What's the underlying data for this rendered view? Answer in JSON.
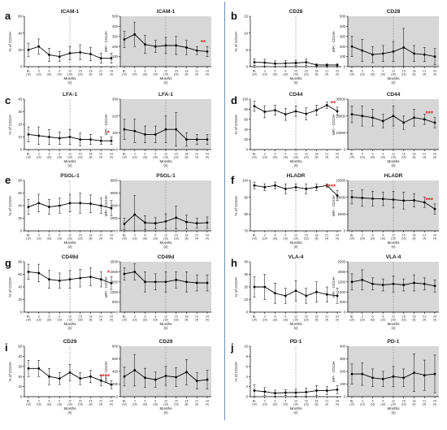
{
  "panels": [
    {
      "letter": "a"
    },
    {
      "letter": "b"
    },
    {
      "letter": "c"
    },
    {
      "letter": "d"
    },
    {
      "letter": "e"
    },
    {
      "letter": "f"
    },
    {
      "letter": "g"
    },
    {
      "letter": "h"
    },
    {
      "letter": "i"
    },
    {
      "letter": "j"
    }
  ],
  "colors": {
    "shade": "#d7d7d7",
    "line": "#000000",
    "star": "#e0262a",
    "dashed": "#888888"
  },
  "common": {
    "xticks": [
      "BL",
      "3",
      "6",
      "9",
      "12",
      "15",
      "18",
      "21",
      "24"
    ],
    "xticks_n": [
      "(19)",
      "(19)",
      "(16)",
      "(16)",
      "(16)",
      "(16)",
      "(8)",
      "(4)",
      "(4)"
    ],
    "b_xticks_n": [
      "(19)",
      "(19)",
      "(16)",
      "(16)",
      "(16)",
      "(16)",
      "(8)",
      "(4)",
      "(4)"
    ],
    "xlabel": "Months",
    "xlabel_n": "(n)"
  },
  "chart_data": [
    {
      "id": "a-left",
      "type": "line",
      "title": "ICAM-1",
      "ylabel": "% of CD19+",
      "ylim": [
        0,
        60
      ],
      "yticks": [
        "0",
        "20",
        "40",
        "60"
      ],
      "shaded": false,
      "values": [
        20,
        24,
        14,
        12,
        16,
        17,
        15,
        10,
        10
      ],
      "err": [
        8,
        9,
        8,
        6,
        8,
        9,
        8,
        6,
        6
      ],
      "sig": ""
    },
    {
      "id": "a-right",
      "type": "line",
      "title": "ICAM-1",
      "ylabel": "MFI - CD19+",
      "ylim": [
        0,
        500
      ],
      "yticks": [
        "0",
        "100",
        "200",
        "300",
        "400",
        "500"
      ],
      "shaded": true,
      "values": [
        270,
        320,
        220,
        200,
        210,
        210,
        190,
        160,
        150
      ],
      "err": [
        80,
        120,
        90,
        60,
        80,
        90,
        70,
        40,
        50
      ],
      "sig": "**"
    },
    {
      "id": "b-left",
      "type": "line",
      "title": "CD28",
      "ylabel": "% of CD19+",
      "ylim": [
        0,
        15
      ],
      "yticks": [
        "0",
        "5",
        "10",
        "15"
      ],
      "shaded": false,
      "values": [
        1.3,
        1.2,
        0.9,
        1.0,
        1.1,
        1.3,
        0.5,
        0.5,
        0.5
      ],
      "err": [
        1.0,
        1.0,
        0.8,
        0.8,
        0.8,
        1.0,
        0.3,
        0.3,
        0.3
      ],
      "sig": ""
    },
    {
      "id": "b-right",
      "type": "line",
      "title": "CD28",
      "ylabel": "MFI - CD19+",
      "ylim": [
        0,
        500
      ],
      "yticks": [
        "0",
        "100",
        "200",
        "300",
        "400",
        "500"
      ],
      "shaded": true,
      "values": [
        200,
        160,
        120,
        130,
        150,
        190,
        130,
        120,
        100
      ],
      "err": [
        100,
        110,
        80,
        80,
        100,
        190,
        80,
        70,
        80
      ],
      "sig": ""
    },
    {
      "id": "c-left",
      "type": "line",
      "title": "LFA-1",
      "ylabel": "% of CD19+",
      "ylim": [
        0,
        40
      ],
      "yticks": [
        "0",
        "10",
        "20",
        "30",
        "40"
      ],
      "shaded": false,
      "values": [
        12,
        11,
        10,
        9,
        10,
        8,
        8,
        7,
        7
      ],
      "err": [
        6,
        7,
        6,
        5,
        6,
        5,
        4,
        3,
        3
      ],
      "sig": "*"
    },
    {
      "id": "c-right",
      "type": "line",
      "title": "LFA-1",
      "ylabel": "MFI - CD19+",
      "ylim": [
        0,
        300
      ],
      "yticks": [
        "0",
        "100",
        "200",
        "300"
      ],
      "shaded": true,
      "values": [
        120,
        110,
        90,
        90,
        120,
        120,
        60,
        60,
        60
      ],
      "err": [
        60,
        70,
        50,
        50,
        80,
        100,
        40,
        30,
        30
      ],
      "sig": ""
    },
    {
      "id": "d-left",
      "type": "line",
      "title": "CD44",
      "ylabel": "% of CD19+",
      "ylim": [
        0,
        100
      ],
      "yticks": [
        "0",
        "20",
        "40",
        "60",
        "80",
        "100"
      ],
      "shaded": false,
      "values": [
        86,
        75,
        78,
        70,
        76,
        71,
        78,
        88,
        76
      ],
      "err": [
        10,
        12,
        10,
        12,
        10,
        12,
        10,
        6,
        8
      ],
      "sig": "**"
    },
    {
      "id": "d-right",
      "type": "line",
      "title": "CD44",
      "ylabel": "MFI - CD19+",
      "ylim": [
        0,
        30000
      ],
      "yticks": [
        "0",
        "10000",
        "20000",
        "30000"
      ],
      "shaded": true,
      "values": [
        21000,
        20000,
        19000,
        17000,
        20000,
        16000,
        19000,
        18000,
        16000
      ],
      "err": [
        5000,
        6000,
        5000,
        4000,
        6000,
        4000,
        5000,
        3000,
        3000
      ],
      "sig": "***"
    },
    {
      "id": "e-left",
      "type": "line",
      "title": "PSGL-1",
      "ylabel": "% of CD19+",
      "ylim": [
        0,
        80
      ],
      "yticks": [
        "0",
        "20",
        "40",
        "60",
        "80"
      ],
      "shaded": false,
      "values": [
        38,
        44,
        38,
        40,
        44,
        44,
        43,
        40,
        36
      ],
      "err": [
        12,
        14,
        12,
        12,
        14,
        16,
        14,
        12,
        12
      ],
      "sig": ""
    },
    {
      "id": "e-right",
      "type": "line",
      "title": "PSGL-1",
      "ylabel": "MFI - CD19+",
      "ylim": [
        0,
        8000
      ],
      "yticks": [
        "0",
        "2000",
        "4000",
        "6000",
        "8000"
      ],
      "shaded": true,
      "values": [
        1100,
        2600,
        1300,
        1200,
        1500,
        2100,
        1400,
        1200,
        1300
      ],
      "err": [
        900,
        3000,
        1100,
        900,
        1200,
        1800,
        1100,
        800,
        900
      ],
      "sig": ""
    },
    {
      "id": "f-left",
      "type": "line",
      "title": "HLADR",
      "ylabel": "% of CD19+",
      "ylim": [
        70,
        100
      ],
      "yticks": [
        "70",
        "80",
        "90",
        "100"
      ],
      "shaded": false,
      "values": [
        97,
        96,
        97,
        95,
        96,
        95,
        96,
        97,
        91
      ],
      "err": [
        2,
        2,
        2,
        3,
        2,
        3,
        2,
        1,
        3
      ],
      "sig": "****"
    },
    {
      "id": "f-right",
      "type": "line",
      "title": "HLADR",
      "ylabel": "MFI - CD19+",
      "ylim": [
        0,
        15000
      ],
      "yticks": [
        "0",
        "5000",
        "10000",
        "15000"
      ],
      "shaded": true,
      "values": [
        10000,
        9800,
        9600,
        9500,
        9300,
        9000,
        9100,
        8500,
        6500
      ],
      "err": [
        2000,
        2500,
        2200,
        2000,
        2500,
        2500,
        2000,
        1500,
        1500
      ],
      "sig": "***"
    },
    {
      "id": "g-left",
      "type": "line",
      "title": "CD49d",
      "ylabel": "% of CD19+",
      "ylim": [
        0,
        80
      ],
      "yticks": [
        "0",
        "20",
        "40",
        "60",
        "80"
      ],
      "shaded": false,
      "values": [
        64,
        62,
        52,
        50,
        52,
        54,
        56,
        52,
        46
      ],
      "err": [
        12,
        14,
        14,
        12,
        14,
        14,
        14,
        12,
        10
      ],
      "sig": "*"
    },
    {
      "id": "g-right",
      "type": "line",
      "title": "CD49d",
      "ylabel": "MFI - CD19+",
      "ylim": [
        0,
        2500
      ],
      "yticks": [
        "0",
        "500",
        "1000",
        "1500",
        "2000",
        "2500"
      ],
      "shaded": true,
      "values": [
        1900,
        2000,
        1500,
        1500,
        1500,
        1600,
        1500,
        1450,
        1450
      ],
      "err": [
        300,
        400,
        500,
        400,
        500,
        400,
        500,
        400,
        400
      ],
      "sig": ""
    },
    {
      "id": "h-left",
      "type": "line",
      "title": "VLA-4",
      "ylabel": "% of CD19+",
      "ylim": [
        0,
        40
      ],
      "yticks": [
        "0",
        "10",
        "20",
        "30",
        "40"
      ],
      "shaded": false,
      "values": [
        20,
        20,
        15,
        13,
        17,
        13,
        16,
        14,
        13
      ],
      "err": [
        8,
        10,
        8,
        6,
        8,
        6,
        8,
        6,
        6
      ],
      "sig": ""
    },
    {
      "id": "h-right",
      "type": "line",
      "title": "VLA-4",
      "ylabel": "MFI - CD19+",
      "ylim": [
        0,
        2500
      ],
      "yticks": [
        "0",
        "500",
        "1000",
        "1500",
        "2000",
        "2500"
      ],
      "shaded": true,
      "values": [
        1500,
        1600,
        1400,
        1350,
        1400,
        1350,
        1450,
        1400,
        1300
      ],
      "err": [
        400,
        500,
        300,
        300,
        400,
        300,
        400,
        300,
        300
      ],
      "sig": ""
    },
    {
      "id": "i-left",
      "type": "line",
      "title": "CD29",
      "ylabel": "% of CD19+",
      "ylim": [
        0,
        50
      ],
      "yticks": [
        "0",
        "10",
        "20",
        "30",
        "40",
        "50"
      ],
      "shaded": false,
      "values": [
        28,
        28,
        20,
        18,
        24,
        18,
        20,
        16,
        12
      ],
      "err": [
        8,
        8,
        8,
        6,
        8,
        6,
        6,
        5,
        4
      ],
      "sig": "****"
    },
    {
      "id": "i-right",
      "type": "line",
      "title": "CD29",
      "ylabel": "MFI - CD19+",
      "ylim": [
        0,
        800
      ],
      "yticks": [
        "0",
        "200",
        "400",
        "600",
        "800"
      ],
      "shaded": true,
      "values": [
        320,
        420,
        300,
        270,
        330,
        310,
        390,
        250,
        270
      ],
      "err": [
        150,
        250,
        150,
        120,
        150,
        150,
        200,
        130,
        150
      ],
      "sig": ""
    },
    {
      "id": "j-left",
      "type": "line",
      "title": "PD-1",
      "ylabel": "% of CD19+",
      "ylim": [
        0,
        10
      ],
      "yticks": [
        "0",
        "2",
        "4",
        "6",
        "8",
        "10"
      ],
      "shaded": false,
      "values": [
        1.2,
        1.0,
        0.7,
        0.8,
        0.8,
        0.9,
        1.2,
        1.2,
        1.4
      ],
      "err": [
        1.2,
        0.8,
        0.6,
        0.6,
        0.7,
        0.8,
        1.0,
        0.8,
        0.8
      ],
      "sig": ""
    },
    {
      "id": "j-right",
      "type": "line",
      "title": "PD-1",
      "ylabel": "MFI - CD19+",
      "ylim": [
        0,
        400
      ],
      "yticks": [
        "0",
        "100",
        "200",
        "300",
        "400"
      ],
      "shaded": true,
      "values": [
        180,
        180,
        150,
        140,
        160,
        150,
        190,
        170,
        180
      ],
      "err": [
        80,
        90,
        70,
        60,
        80,
        70,
        150,
        120,
        150
      ],
      "sig": ""
    }
  ]
}
